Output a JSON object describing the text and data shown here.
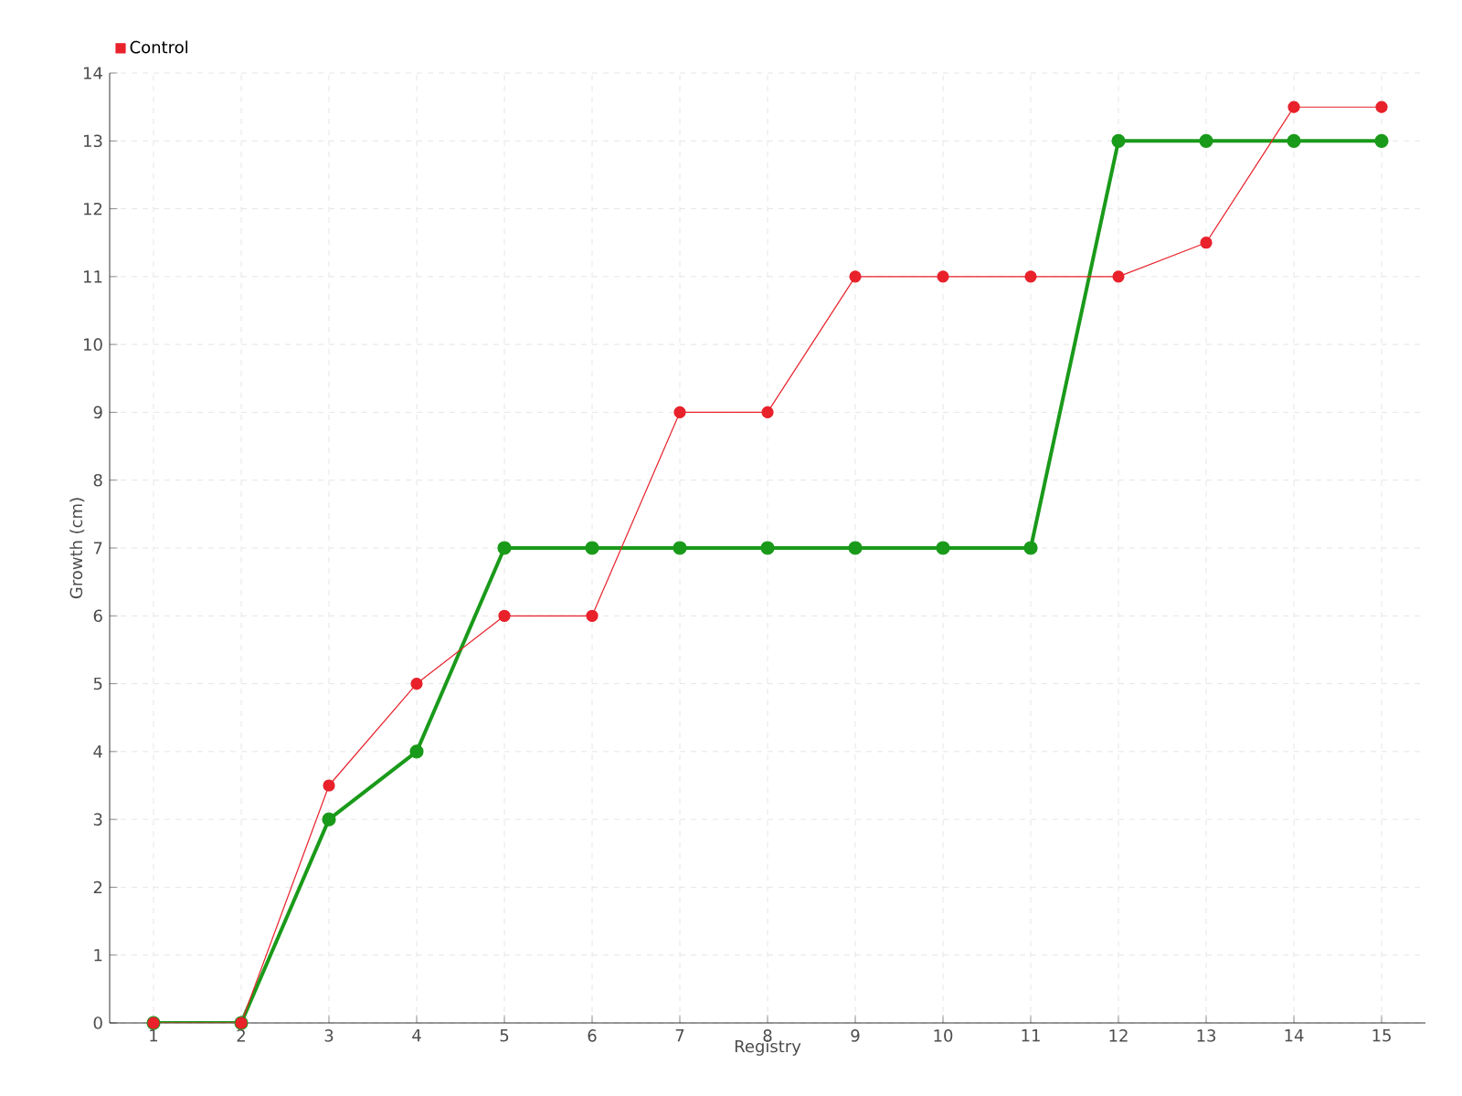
{
  "chart_data": {
    "type": "line",
    "xlabel": "Registry",
    "ylabel": "Growth (cm)",
    "categories": [
      "1",
      "2",
      "3",
      "4",
      "5",
      "6",
      "7",
      "8",
      "9",
      "10",
      "11",
      "12",
      "13",
      "14",
      "15"
    ],
    "series": [
      {
        "color": "#1a9a1a",
        "values": [
          0,
          0,
          3,
          4,
          7,
          7,
          7,
          7,
          7,
          7,
          7,
          13,
          13,
          13,
          13
        ]
      },
      {
        "name": "Control",
        "color": "#e8212b",
        "values": [
          0,
          0,
          3.5,
          5,
          6,
          6,
          9,
          9,
          11,
          11,
          11,
          11,
          11.5,
          13.5,
          13.5
        ]
      }
    ],
    "ylim": [
      0,
      14
    ],
    "yticks": [
      0,
      1,
      2,
      3,
      4,
      5,
      6,
      7,
      8,
      9,
      10,
      11,
      12,
      13,
      14
    ],
    "grid": true,
    "legend": "top left",
    "marker": "circle",
    "line_style": "solid"
  }
}
